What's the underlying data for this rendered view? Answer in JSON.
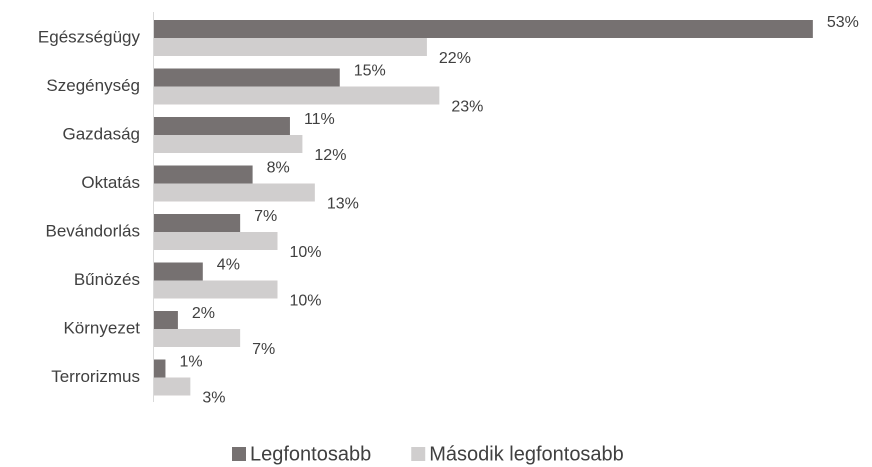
{
  "chart_data": {
    "type": "bar",
    "orientation": "horizontal",
    "categories": [
      "Egészségügy",
      "Szegénység",
      "Gazdaság",
      "Oktatás",
      "Bevándorlás",
      "Bűnözés",
      "Környezet",
      "Terrorizmus"
    ],
    "series": [
      {
        "name": "Legfontosabb",
        "color": "#767171",
        "values": [
          53,
          15,
          11,
          8,
          7,
          4,
          2,
          1
        ],
        "value_labels": [
          "53%",
          "15%",
          "11%",
          "8%",
          "7%",
          "4%",
          "2%",
          "1%"
        ]
      },
      {
        "name": "Második legfontosabb",
        "color": "#d0cece",
        "values": [
          22,
          23,
          12,
          13,
          10,
          10,
          7,
          3
        ],
        "value_labels": [
          "22%",
          "23%",
          "12%",
          "13%",
          "10%",
          "10%",
          "7%",
          "3%"
        ]
      }
    ],
    "legend": "bottom"
  }
}
